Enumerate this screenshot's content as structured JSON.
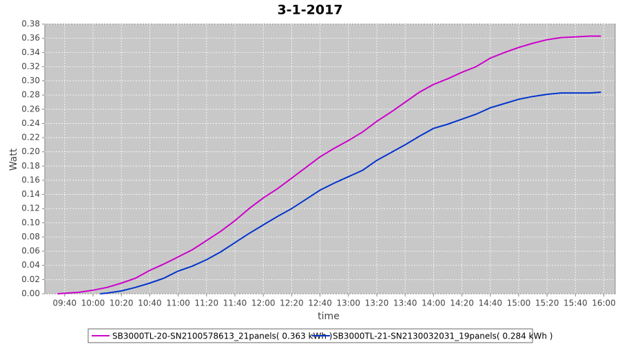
{
  "chart_data": {
    "type": "line",
    "title": "3-1-2017",
    "x_label": "time",
    "y_label": "Watt",
    "xlim": [
      "09:26",
      "16:08"
    ],
    "xticks": [
      "09:40",
      "10:00",
      "10:20",
      "10:40",
      "11:00",
      "11:20",
      "11:40",
      "12:00",
      "12:20",
      "12:40",
      "13:00",
      "13:20",
      "13:40",
      "14:00",
      "14:20",
      "14:40",
      "15:00",
      "15:20",
      "15:40",
      "16:00"
    ],
    "ylim": [
      0,
      0.38
    ],
    "yticks": [
      {
        "value": 0,
        "label": "0.00"
      },
      {
        "value": 0.02,
        "label": "0.02"
      },
      {
        "value": 0.04,
        "label": "0.04"
      },
      {
        "value": 0.06,
        "label": "0.06"
      },
      {
        "value": 0.08,
        "label": "0.08"
      },
      {
        "value": 0.1,
        "label": "0.10"
      },
      {
        "value": 0.12,
        "label": "0.12"
      },
      {
        "value": 0.14,
        "label": "0.14"
      },
      {
        "value": 0.16,
        "label": "0.16"
      },
      {
        "value": 0.18,
        "label": "0.18"
      },
      {
        "value": 0.2,
        "label": "0.20"
      },
      {
        "value": 0.22,
        "label": "0.22"
      },
      {
        "value": 0.24,
        "label": "0.24"
      },
      {
        "value": 0.26,
        "label": "0.26"
      },
      {
        "value": 0.28,
        "label": "0.28"
      },
      {
        "value": 0.3,
        "label": "0.30"
      },
      {
        "value": 0.32,
        "label": "0.32"
      },
      {
        "value": 0.34,
        "label": "0.34"
      },
      {
        "value": 0.36,
        "label": "0.36"
      },
      {
        "value": 0.38,
        "label": "0.38"
      }
    ],
    "grid": true,
    "series": [
      {
        "name": "SB3000TL-20-SN2100578613_21panels( 0.363 kWh )",
        "color": "#cc00cc",
        "x": [
          "09:35",
          "09:50",
          "10:00",
          "10:10",
          "10:20",
          "10:30",
          "10:40",
          "10:50",
          "11:00",
          "11:10",
          "11:20",
          "11:30",
          "11:40",
          "11:50",
          "12:00",
          "12:10",
          "12:20",
          "12:30",
          "12:40",
          "12:50",
          "13:00",
          "13:10",
          "13:20",
          "13:30",
          "13:40",
          "13:50",
          "14:00",
          "14:10",
          "14:20",
          "14:30",
          "14:40",
          "14:50",
          "15:00",
          "15:10",
          "15:20",
          "15:30",
          "15:40",
          "15:50",
          "15:58"
        ],
        "values": [
          0,
          0.002,
          0.005,
          0.009,
          0.015,
          0.022,
          0.033,
          0.042,
          0.052,
          0.062,
          0.075,
          0.088,
          0.103,
          0.12,
          0.135,
          0.148,
          0.163,
          0.178,
          0.193,
          0.205,
          0.216,
          0.228,
          0.243,
          0.256,
          0.27,
          0.284,
          0.295,
          0.303,
          0.312,
          0.32,
          0.332,
          0.34,
          0.347,
          0.353,
          0.358,
          0.361,
          0.362,
          0.363,
          0.363
        ]
      },
      {
        "name": "SB3000TL-21-SN2130032031_19panels( 0.284 kWh )",
        "color": "#0033cc",
        "x": [
          "10:05",
          "10:10",
          "10:20",
          "10:30",
          "10:40",
          "10:50",
          "11:00",
          "11:10",
          "11:20",
          "11:30",
          "11:40",
          "11:50",
          "12:00",
          "12:10",
          "12:20",
          "12:30",
          "12:40",
          "12:50",
          "13:00",
          "13:10",
          "13:20",
          "13:30",
          "13:40",
          "13:50",
          "14:00",
          "14:10",
          "14:20",
          "14:30",
          "14:40",
          "14:50",
          "15:00",
          "15:10",
          "15:20",
          "15:30",
          "15:40",
          "15:50",
          "15:58"
        ],
        "values": [
          0,
          0.001,
          0.004,
          0.009,
          0.015,
          0.022,
          0.032,
          0.039,
          0.048,
          0.059,
          0.072,
          0.085,
          0.097,
          0.109,
          0.12,
          0.133,
          0.146,
          0.156,
          0.165,
          0.174,
          0.188,
          0.199,
          0.21,
          0.222,
          0.233,
          0.239,
          0.246,
          0.253,
          0.262,
          0.268,
          0.274,
          0.278,
          0.281,
          0.283,
          0.283,
          0.283,
          0.284
        ]
      }
    ]
  }
}
